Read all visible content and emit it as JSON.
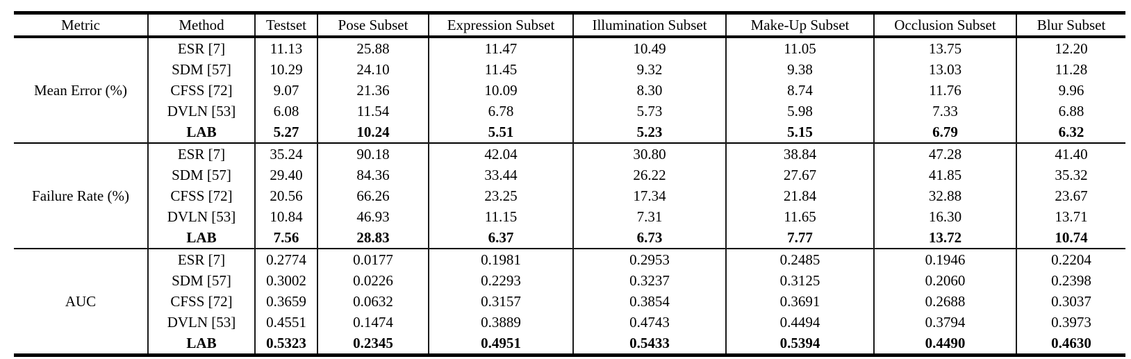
{
  "table": {
    "columns": [
      "Metric",
      "Method",
      "Testset",
      "Pose Subset",
      "Expression Subset",
      "Illumination Subset",
      "Make-Up Subset",
      "Occlusion Subset",
      "Blur Subset"
    ],
    "groups": [
      {
        "metric": "Mean Error (%)",
        "rows": [
          {
            "method": "ESR [7]",
            "bold": false,
            "values": [
              "11.13",
              "25.88",
              "11.47",
              "10.49",
              "11.05",
              "13.75",
              "12.20"
            ]
          },
          {
            "method": "SDM [57]",
            "bold": false,
            "values": [
              "10.29",
              "24.10",
              "11.45",
              "9.32",
              "9.38",
              "13.03",
              "11.28"
            ]
          },
          {
            "method": "CFSS [72]",
            "bold": false,
            "values": [
              "9.07",
              "21.36",
              "10.09",
              "8.30",
              "8.74",
              "11.76",
              "9.96"
            ]
          },
          {
            "method": "DVLN [53]",
            "bold": false,
            "values": [
              "6.08",
              "11.54",
              "6.78",
              "5.73",
              "5.98",
              "7.33",
              "6.88"
            ]
          },
          {
            "method": "LAB",
            "bold": true,
            "values": [
              "5.27",
              "10.24",
              "5.51",
              "5.23",
              "5.15",
              "6.79",
              "6.32"
            ]
          }
        ]
      },
      {
        "metric": "Failure Rate (%)",
        "rows": [
          {
            "method": "ESR [7]",
            "bold": false,
            "values": [
              "35.24",
              "90.18",
              "42.04",
              "30.80",
              "38.84",
              "47.28",
              "41.40"
            ]
          },
          {
            "method": "SDM [57]",
            "bold": false,
            "values": [
              "29.40",
              "84.36",
              "33.44",
              "26.22",
              "27.67",
              "41.85",
              "35.32"
            ]
          },
          {
            "method": "CFSS [72]",
            "bold": false,
            "values": [
              "20.56",
              "66.26",
              "23.25",
              "17.34",
              "21.84",
              "32.88",
              "23.67"
            ]
          },
          {
            "method": "DVLN [53]",
            "bold": false,
            "values": [
              "10.84",
              "46.93",
              "11.15",
              "7.31",
              "11.65",
              "16.30",
              "13.71"
            ]
          },
          {
            "method": "LAB",
            "bold": true,
            "values": [
              "7.56",
              "28.83",
              "6.37",
              "6.73",
              "7.77",
              "13.72",
              "10.74"
            ]
          }
        ]
      },
      {
        "metric": "AUC",
        "rows": [
          {
            "method": "ESR [7]",
            "bold": false,
            "values": [
              "0.2774",
              "0.0177",
              "0.1981",
              "0.2953",
              "0.2485",
              "0.1946",
              "0.2204"
            ]
          },
          {
            "method": "SDM [57]",
            "bold": false,
            "values": [
              "0.3002",
              "0.0226",
              "0.2293",
              "0.3237",
              "0.3125",
              "0.2060",
              "0.2398"
            ]
          },
          {
            "method": "CFSS [72]",
            "bold": false,
            "values": [
              "0.3659",
              "0.0632",
              "0.3157",
              "0.3854",
              "0.3691",
              "0.2688",
              "0.3037"
            ]
          },
          {
            "method": "DVLN [53]",
            "bold": false,
            "values": [
              "0.4551",
              "0.1474",
              "0.3889",
              "0.4743",
              "0.4494",
              "0.3794",
              "0.3973"
            ]
          },
          {
            "method": "LAB",
            "bold": true,
            "values": [
              "0.5323",
              "0.2345",
              "0.4951",
              "0.5433",
              "0.5394",
              "0.4490",
              "0.4630"
            ]
          }
        ]
      }
    ]
  },
  "colors": {
    "text": "#000000",
    "background": "#ffffff",
    "rule": "#000000"
  }
}
